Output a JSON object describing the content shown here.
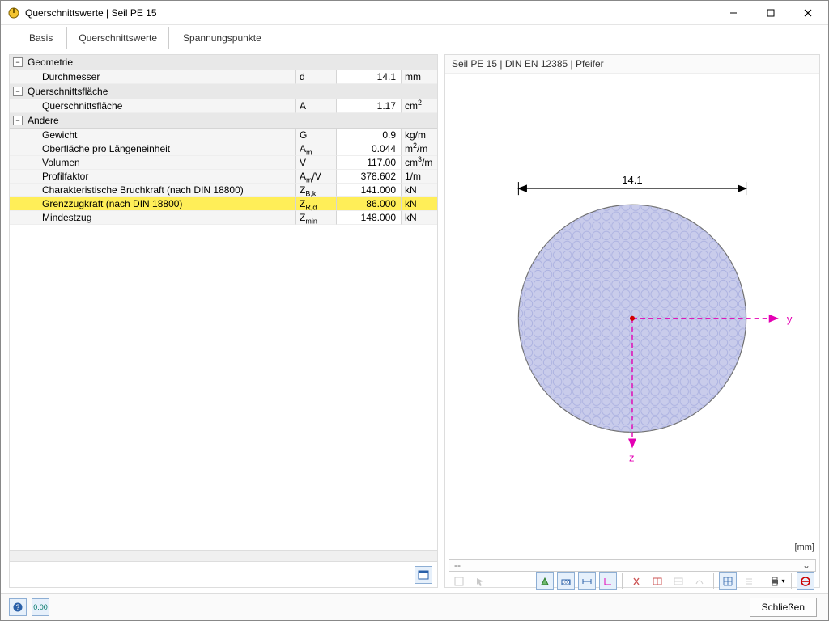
{
  "window": {
    "title": "Querschnittswerte | Seil PE 15"
  },
  "tabs": {
    "basis": "Basis",
    "querschnittswerte": "Querschnittswerte",
    "spannungspunkte": "Spannungspunkte",
    "active_index": 1
  },
  "groups": {
    "geometrie": {
      "label": "Geometrie",
      "rows": [
        {
          "name": "Durchmesser",
          "symbol": "d",
          "value": "14.1",
          "unit": "mm",
          "highlight": false
        }
      ]
    },
    "querschnittsflaeche": {
      "label": "Querschnittsfläche",
      "rows": [
        {
          "name": "Querschnittsfläche",
          "symbol_html": "A",
          "value": "1.17",
          "unit_html": "cm<sup>2</sup>",
          "highlight": false
        }
      ]
    },
    "andere": {
      "label": "Andere",
      "rows": [
        {
          "name": "Gewicht",
          "symbol_html": "G",
          "value": "0.9",
          "unit_html": "kg/m",
          "highlight": false
        },
        {
          "name": "Oberfläche pro Längeneinheit",
          "symbol_html": "A<sub>m</sub>",
          "value": "0.044",
          "unit_html": "m<sup>2</sup>/m",
          "highlight": false
        },
        {
          "name": "Volumen",
          "symbol_html": "V",
          "value": "117.00",
          "unit_html": "cm<sup>3</sup>/m",
          "highlight": false
        },
        {
          "name": "Profilfaktor",
          "symbol_html": "A<sub>m</sub>/V",
          "value": "378.602",
          "unit_html": "1/m",
          "highlight": false
        },
        {
          "name": "Charakteristische Bruchkraft (nach DIN 18800)",
          "symbol_html": "Z<sub>B,k</sub>",
          "value": "141.000",
          "unit_html": "kN",
          "highlight": false
        },
        {
          "name": "Grenzzugkraft (nach DIN 18800)",
          "symbol_html": "Z<sub>R,d</sub>",
          "value": "86.000",
          "unit_html": "kN",
          "highlight": true
        },
        {
          "name": "Mindestzug",
          "symbol_html": "Z<sub>min</sub>",
          "value": "148.000",
          "unit_html": "kN",
          "highlight": false
        }
      ]
    }
  },
  "preview": {
    "title": "Seil PE 15 | DIN EN 12385 | Pfeifer",
    "dimension_label": "14.1",
    "axis_y_label": "y",
    "axis_z_label": "z",
    "unit_label": "[mm]",
    "combo_value": "--",
    "circle_fill": "#c9cceb",
    "circle_stroke": "#707070",
    "pattern_stroke": "#aab0e0",
    "axis_color": "#e400b4",
    "background": "#ffffff"
  },
  "footer": {
    "close_label": "Schließen"
  },
  "icons": {
    "toggle_minus": "−"
  }
}
